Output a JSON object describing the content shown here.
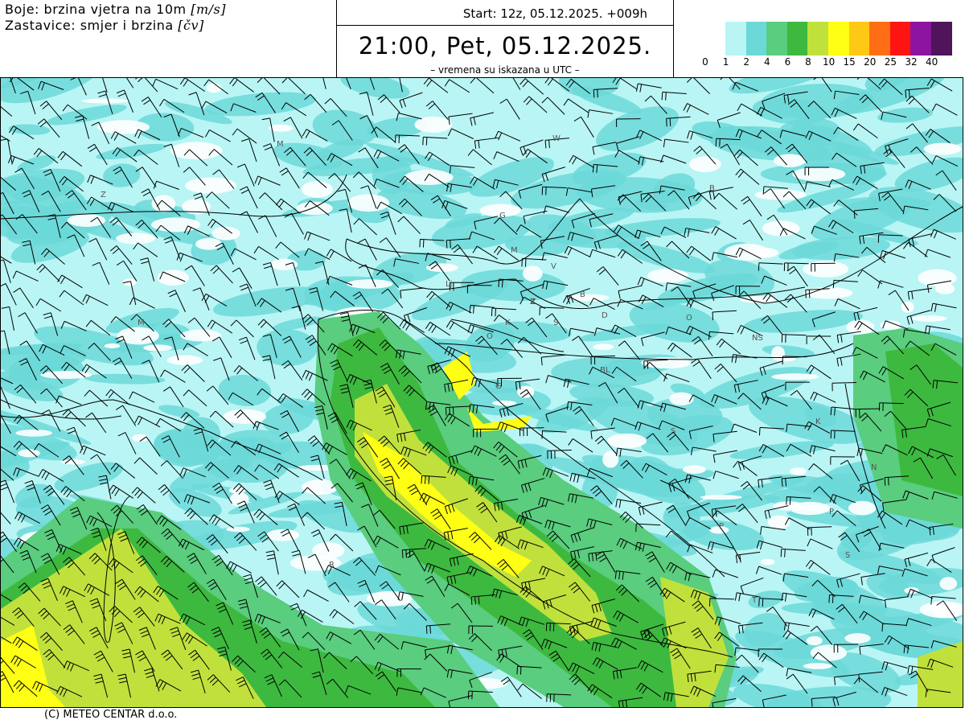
{
  "header": {
    "colors_line_prefix": "Boje: brzina vjetra na 10m ",
    "colors_unit": "[m/s]",
    "barbs_line_prefix": "Zastavice: smjer i brzina ",
    "barbs_unit": "[čv]",
    "start": "Start: 12z, 05.12.2025.   +009h",
    "valid_time": "21:00, Pet, 05.12.2025.",
    "utc_note": "– vremena su iskazana u UTC –"
  },
  "legend": {
    "labels": [
      "0",
      "1",
      "2",
      "4",
      "6",
      "8",
      "10",
      "15",
      "20",
      "25",
      "32",
      "40"
    ],
    "colors": [
      "#b9f5f5",
      "#6cd8d8",
      "#5acd7e",
      "#3db93f",
      "#c0e13c",
      "#ffff14",
      "#ffc814",
      "#ff6e14",
      "#ff1414",
      "#8c14a0",
      "#50145a"
    ]
  },
  "map": {
    "cities": [
      {
        "t": "M"
      },
      {
        "t": "W"
      },
      {
        "t": "B"
      },
      {
        "t": "G"
      },
      {
        "t": "M"
      },
      {
        "t": "Lj"
      },
      {
        "t": "Z"
      },
      {
        "t": "V"
      },
      {
        "t": "B"
      },
      {
        "t": "K"
      },
      {
        "t": "S"
      },
      {
        "t": "O"
      },
      {
        "t": "D"
      },
      {
        "t": "O"
      },
      {
        "t": "NS"
      },
      {
        "t": "BL"
      },
      {
        "t": "G"
      },
      {
        "t": "S"
      },
      {
        "t": "K"
      },
      {
        "t": "N"
      },
      {
        "t": "P"
      },
      {
        "t": "S"
      },
      {
        "t": "P"
      },
      {
        "t": "T"
      },
      {
        "t": "R"
      },
      {
        "t": "M"
      },
      {
        "t": "Z"
      }
    ]
  },
  "footer": "(C) METEO CENTAR d.o.o."
}
